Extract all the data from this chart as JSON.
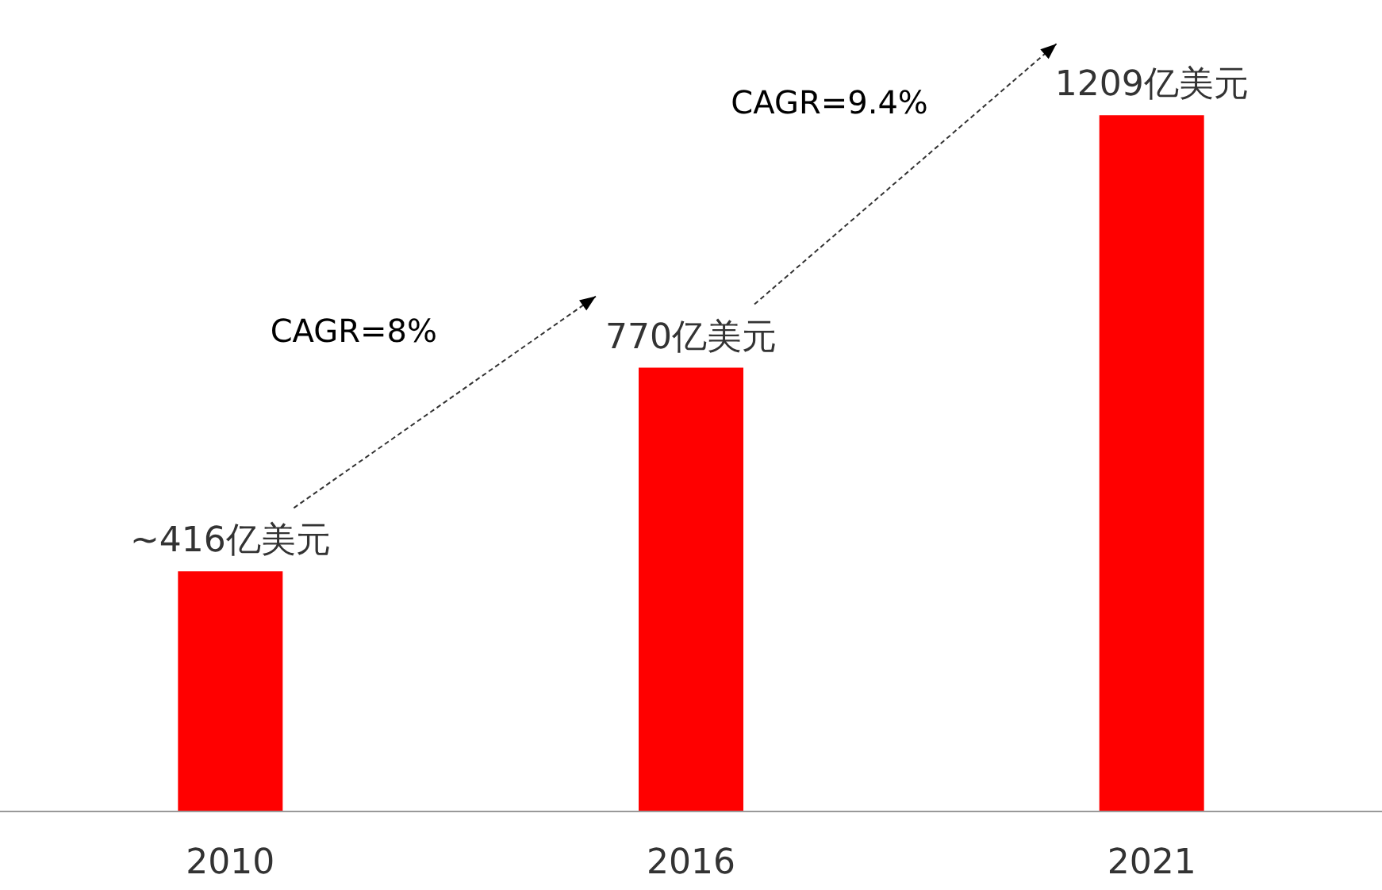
{
  "chart_data": {
    "type": "bar",
    "categories": [
      "2010",
      "2016",
      "2021"
    ],
    "values": [
      416,
      770,
      1209
    ],
    "value_labels": [
      "~416亿美元",
      "770亿美元",
      "1209亿美元"
    ],
    "color": "#ff0000",
    "annotations": [
      "CAGR=8%",
      "CAGR=9.4%"
    ]
  }
}
